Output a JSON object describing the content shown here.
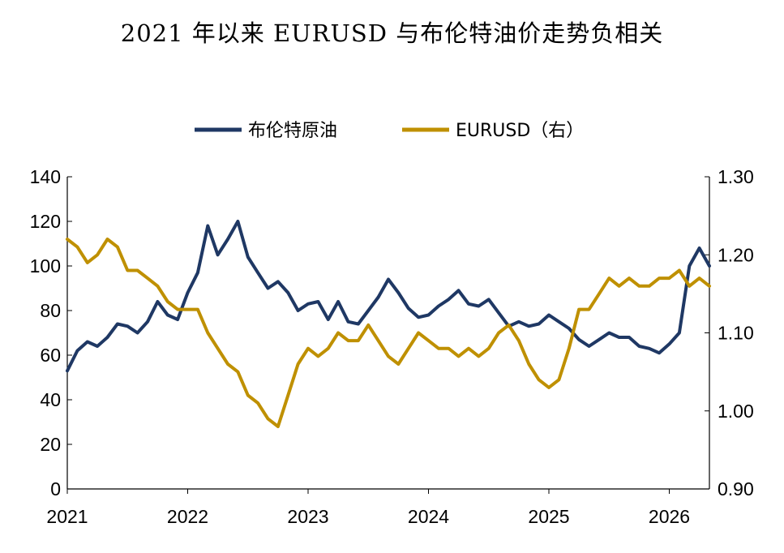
{
  "chart_data": {
    "type": "line",
    "title": "2021 年以来 EURUSD 与布伦特油价走势负相关",
    "legend_position": "top-center",
    "grid": false,
    "x_ticks": [
      "2021",
      "2022",
      "2023",
      "2024",
      "2025",
      "2026"
    ],
    "xlim": [
      "2021-01",
      "2026-05"
    ],
    "y_left": {
      "lim": [
        0,
        140
      ],
      "ticks": [
        "0",
        "20",
        "40",
        "60",
        "80",
        "100",
        "120",
        "140"
      ]
    },
    "y_right": {
      "lim": [
        0.9,
        1.3
      ],
      "ticks": [
        "0.90",
        "1.00",
        "1.10",
        "1.20",
        "1.30"
      ]
    },
    "series": [
      {
        "name": "布伦特原油",
        "axis": "left",
        "color": "#1f3864",
        "x": [
          "2021-01",
          "2021-02",
          "2021-03",
          "2021-04",
          "2021-05",
          "2021-06",
          "2021-07",
          "2021-08",
          "2021-09",
          "2021-10",
          "2021-11",
          "2021-12",
          "2022-01",
          "2022-02",
          "2022-03",
          "2022-04",
          "2022-05",
          "2022-06",
          "2022-07",
          "2022-08",
          "2022-09",
          "2022-10",
          "2022-11",
          "2022-12",
          "2023-01",
          "2023-02",
          "2023-03",
          "2023-04",
          "2023-05",
          "2023-06",
          "2023-07",
          "2023-08",
          "2023-09",
          "2023-10",
          "2023-11",
          "2023-12",
          "2024-01",
          "2024-02",
          "2024-03",
          "2024-04",
          "2024-05",
          "2024-06",
          "2024-07",
          "2024-08",
          "2024-09",
          "2024-10",
          "2024-11",
          "2024-12",
          "2025-01",
          "2025-02",
          "2025-03",
          "2025-04",
          "2025-05",
          "2025-06",
          "2025-07",
          "2025-08",
          "2025-09",
          "2025-10",
          "2025-11",
          "2025-12",
          "2026-01",
          "2026-02",
          "2026-03",
          "2026-04",
          "2026-05"
        ],
        "y": [
          53,
          62,
          66,
          64,
          68,
          74,
          73,
          70,
          75,
          84,
          78,
          76,
          88,
          97,
          118,
          105,
          112,
          120,
          104,
          97,
          90,
          93,
          88,
          80,
          83,
          84,
          76,
          84,
          75,
          74,
          80,
          86,
          94,
          88,
          81,
          77,
          78,
          82,
          85,
          89,
          83,
          82,
          85,
          79,
          73,
          75,
          73,
          74,
          78,
          75,
          72,
          67,
          64,
          67,
          70,
          68,
          68,
          64,
          63,
          61,
          65,
          70,
          100,
          108,
          100
        ]
      },
      {
        "name": "EURUSD（右）",
        "axis": "right",
        "color": "#bf9000",
        "x": [
          "2021-01",
          "2021-02",
          "2021-03",
          "2021-04",
          "2021-05",
          "2021-06",
          "2021-07",
          "2021-08",
          "2021-09",
          "2021-10",
          "2021-11",
          "2021-12",
          "2022-01",
          "2022-02",
          "2022-03",
          "2022-04",
          "2022-05",
          "2022-06",
          "2022-07",
          "2022-08",
          "2022-09",
          "2022-10",
          "2022-11",
          "2022-12",
          "2023-01",
          "2023-02",
          "2023-03",
          "2023-04",
          "2023-05",
          "2023-06",
          "2023-07",
          "2023-08",
          "2023-09",
          "2023-10",
          "2023-11",
          "2023-12",
          "2024-01",
          "2024-02",
          "2024-03",
          "2024-04",
          "2024-05",
          "2024-06",
          "2024-07",
          "2024-08",
          "2024-09",
          "2024-10",
          "2024-11",
          "2024-12",
          "2025-01",
          "2025-02",
          "2025-03",
          "2025-04",
          "2025-05",
          "2025-06",
          "2025-07",
          "2025-08",
          "2025-09",
          "2025-10",
          "2025-11",
          "2025-12",
          "2026-01",
          "2026-02",
          "2026-03",
          "2026-04",
          "2026-05"
        ],
        "y": [
          1.22,
          1.21,
          1.19,
          1.2,
          1.22,
          1.21,
          1.18,
          1.18,
          1.17,
          1.16,
          1.14,
          1.13,
          1.13,
          1.13,
          1.1,
          1.08,
          1.06,
          1.05,
          1.02,
          1.01,
          0.99,
          0.98,
          1.02,
          1.06,
          1.08,
          1.07,
          1.08,
          1.1,
          1.09,
          1.09,
          1.11,
          1.09,
          1.07,
          1.06,
          1.08,
          1.1,
          1.09,
          1.08,
          1.08,
          1.07,
          1.08,
          1.07,
          1.08,
          1.1,
          1.11,
          1.09,
          1.06,
          1.04,
          1.03,
          1.04,
          1.08,
          1.13,
          1.13,
          1.15,
          1.17,
          1.16,
          1.17,
          1.16,
          1.16,
          1.17,
          1.17,
          1.18,
          1.16,
          1.17,
          1.16
        ]
      }
    ]
  }
}
